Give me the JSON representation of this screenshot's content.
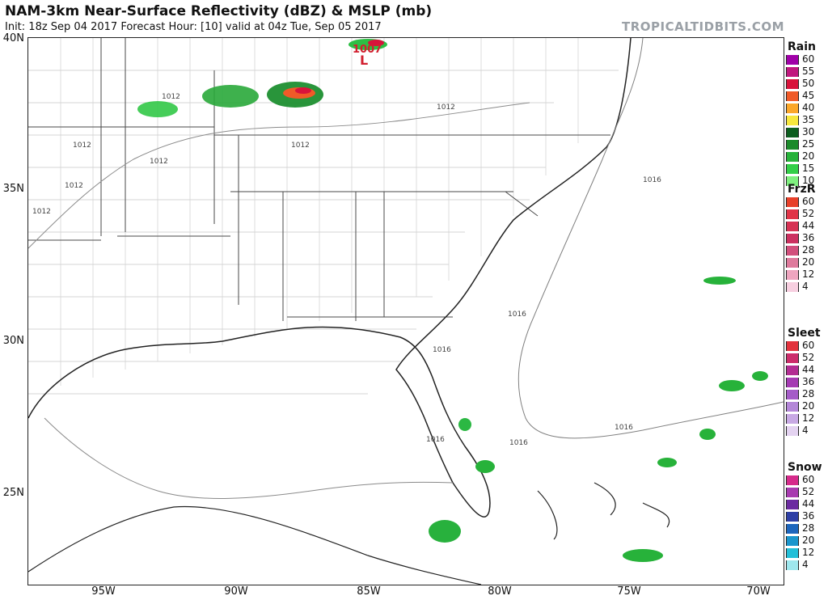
{
  "header": {
    "title": "NAM-3km Near-Surface Reflectivity (dBZ) & MSLP (mb)",
    "subtitle": "Init: 18z Sep 04 2017   Forecast Hour: [10]   valid at 04z Tue, Sep 05 2017",
    "brand": "TROPICALTIDBITS.COM"
  },
  "axes": {
    "y_ticks": [
      {
        "label": "40N"
      },
      {
        "label": "35N"
      },
      {
        "label": "30N"
      },
      {
        "label": "25N"
      }
    ],
    "x_ticks": [
      {
        "label": "95W"
      },
      {
        "label": "90W"
      },
      {
        "label": "85W"
      },
      {
        "label": "80W"
      },
      {
        "label": "75W"
      },
      {
        "label": "70W"
      }
    ]
  },
  "map": {
    "isobar_labels": [
      "1012",
      "1012",
      "1012",
      "1012",
      "1012",
      "1012",
      "1012",
      "1016",
      "1016",
      "1016",
      "1016",
      "1016",
      "1016"
    ],
    "low_pressure": {
      "value": "1007",
      "symbol": "L"
    }
  },
  "legend": [
    {
      "title": "Rain",
      "items": [
        {
          "label": "60",
          "color": "#a000a8"
        },
        {
          "label": "55",
          "color": "#c0187e"
        },
        {
          "label": "50",
          "color": "#d8133b"
        },
        {
          "label": "45",
          "color": "#f05a28"
        },
        {
          "label": "40",
          "color": "#fba72a"
        },
        {
          "label": "35",
          "color": "#f7e83d"
        },
        {
          "label": "30",
          "color": "#0c5e1e"
        },
        {
          "label": "25",
          "color": "#1b8a2a"
        },
        {
          "label": "20",
          "color": "#27b23a"
        },
        {
          "label": "15",
          "color": "#33cf48"
        },
        {
          "label": "10",
          "color": "#7ff07f"
        }
      ]
    },
    {
      "title": "FrzR",
      "items": [
        {
          "label": "60",
          "color": "#e8402a"
        },
        {
          "label": "52",
          "color": "#e03548"
        },
        {
          "label": "44",
          "color": "#d63254"
        },
        {
          "label": "36",
          "color": "#cc3060"
        },
        {
          "label": "28",
          "color": "#d24f7c"
        },
        {
          "label": "20",
          "color": "#de7a9c"
        },
        {
          "label": "12",
          "color": "#eea5bf"
        },
        {
          "label": "4",
          "color": "#f7cfe0"
        }
      ]
    },
    {
      "title": "Sleet",
      "items": [
        {
          "label": "60",
          "color": "#e2323d"
        },
        {
          "label": "52",
          "color": "#cc2d6b"
        },
        {
          "label": "44",
          "color": "#b32d93"
        },
        {
          "label": "36",
          "color": "#a53ab3"
        },
        {
          "label": "28",
          "color": "#a55cc8"
        },
        {
          "label": "20",
          "color": "#b487d8"
        },
        {
          "label": "12",
          "color": "#c8a9e4"
        },
        {
          "label": "4",
          "color": "#e4d3f1"
        }
      ]
    },
    {
      "title": "Snow",
      "items": [
        {
          "label": "60",
          "color": "#d62a8b"
        },
        {
          "label": "52",
          "color": "#a83bb0"
        },
        {
          "label": "44",
          "color": "#6b2ba0"
        },
        {
          "label": "36",
          "color": "#2e3fa5"
        },
        {
          "label": "28",
          "color": "#1d66bd"
        },
        {
          "label": "20",
          "color": "#1a96cd"
        },
        {
          "label": "12",
          "color": "#24bfd8"
        },
        {
          "label": "4",
          "color": "#9ee7ee"
        }
      ]
    }
  ]
}
